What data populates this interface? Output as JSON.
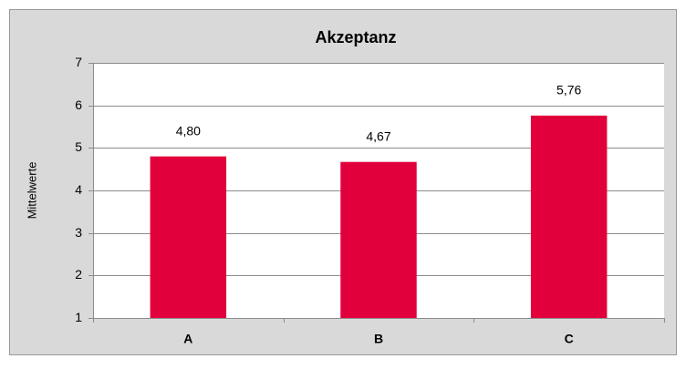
{
  "chart_data": {
    "type": "bar",
    "title": "Akzeptanz",
    "y_label": "Mittelwerte",
    "categories": [
      "A",
      "B",
      "C"
    ],
    "values": [
      4.8,
      4.67,
      5.76
    ],
    "value_labels": [
      "4,80",
      "4,67",
      "5,76"
    ],
    "color": "#e2003c",
    "ylim": [
      1,
      7
    ],
    "yticks": [
      1,
      2,
      3,
      4,
      5,
      6,
      7
    ],
    "grid": true
  }
}
